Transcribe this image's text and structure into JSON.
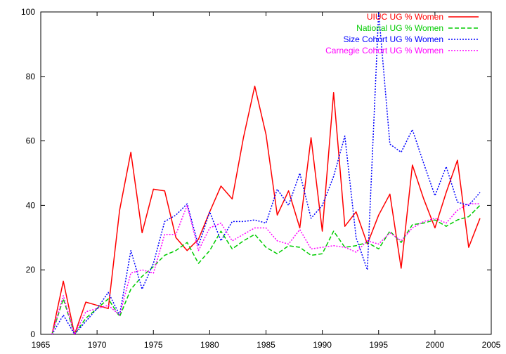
{
  "chart_data": {
    "type": "line",
    "title": "",
    "xlabel": "",
    "ylabel": "",
    "xlim": [
      1965,
      2005
    ],
    "ylim": [
      0,
      100
    ],
    "xticks": [
      1965,
      1970,
      1975,
      1980,
      1985,
      1990,
      1995,
      2000,
      2005
    ],
    "yticks": [
      0,
      20,
      40,
      60,
      80,
      100
    ],
    "grid": false,
    "legend_position": "top-right",
    "x": [
      1966,
      1967,
      1968,
      1969,
      1970,
      1971,
      1972,
      1973,
      1974,
      1975,
      1976,
      1977,
      1978,
      1979,
      1980,
      1981,
      1982,
      1983,
      1984,
      1985,
      1986,
      1987,
      1988,
      1989,
      1990,
      1991,
      1992,
      1993,
      1994,
      1995,
      1996,
      1997,
      1998,
      1999,
      2000,
      2001,
      2002,
      2003,
      2004
    ],
    "series": [
      {
        "name": "UIUC UG % Women",
        "color": "#ff0000",
        "dash": "solid",
        "values": [
          0,
          16.5,
          0,
          10,
          9,
          8,
          38.5,
          56.5,
          31.5,
          45,
          44.5,
          30,
          26,
          29.5,
          38,
          46,
          42,
          61,
          77,
          62,
          37,
          44.5,
          33,
          61,
          32,
          75,
          33.5,
          38,
          28,
          37,
          43.5,
          20.5,
          52.5,
          42,
          33,
          44,
          54,
          27,
          36
        ]
      },
      {
        "name": "National UG % Women",
        "color": "#00cc00",
        "dash": "dashed",
        "values": [
          0,
          11,
          0,
          5,
          8,
          11,
          5.5,
          14,
          18,
          21,
          24.5,
          26,
          28.5,
          22,
          26,
          32,
          26.5,
          29,
          31,
          27,
          25,
          27.5,
          27,
          24.5,
          25,
          32,
          27,
          27.5,
          28.5,
          26.5,
          32,
          28.5,
          34,
          34.5,
          35.5,
          33.5,
          35.5,
          36.5,
          40
        ]
      },
      {
        "name": "Size Cohort UG % Women",
        "color": "#0000ff",
        "dash": "dotted",
        "values": [
          0,
          6,
          0,
          4,
          8,
          13,
          6,
          26,
          14,
          22,
          35,
          37,
          40.5,
          27.5,
          38,
          29,
          35,
          35,
          35.5,
          34.5,
          45,
          40,
          50,
          36,
          40,
          49,
          61.5,
          30,
          20,
          100,
          59,
          56.5,
          63.5,
          53,
          43,
          52,
          41,
          40,
          44
        ]
      },
      {
        "name": "Carnegie Cohort UG % Women",
        "color": "#ff00ff",
        "dash": "dotted",
        "values": [
          0,
          12,
          0,
          7,
          8,
          9,
          6,
          19,
          20,
          19,
          31,
          31,
          40,
          26,
          33,
          34.5,
          29,
          31,
          33,
          33,
          29,
          28,
          32.5,
          26.5,
          27,
          27.5,
          27,
          25.5,
          29,
          28,
          31.5,
          29,
          33,
          35,
          36,
          34.5,
          38.5,
          40.5,
          40.5
        ]
      }
    ]
  }
}
